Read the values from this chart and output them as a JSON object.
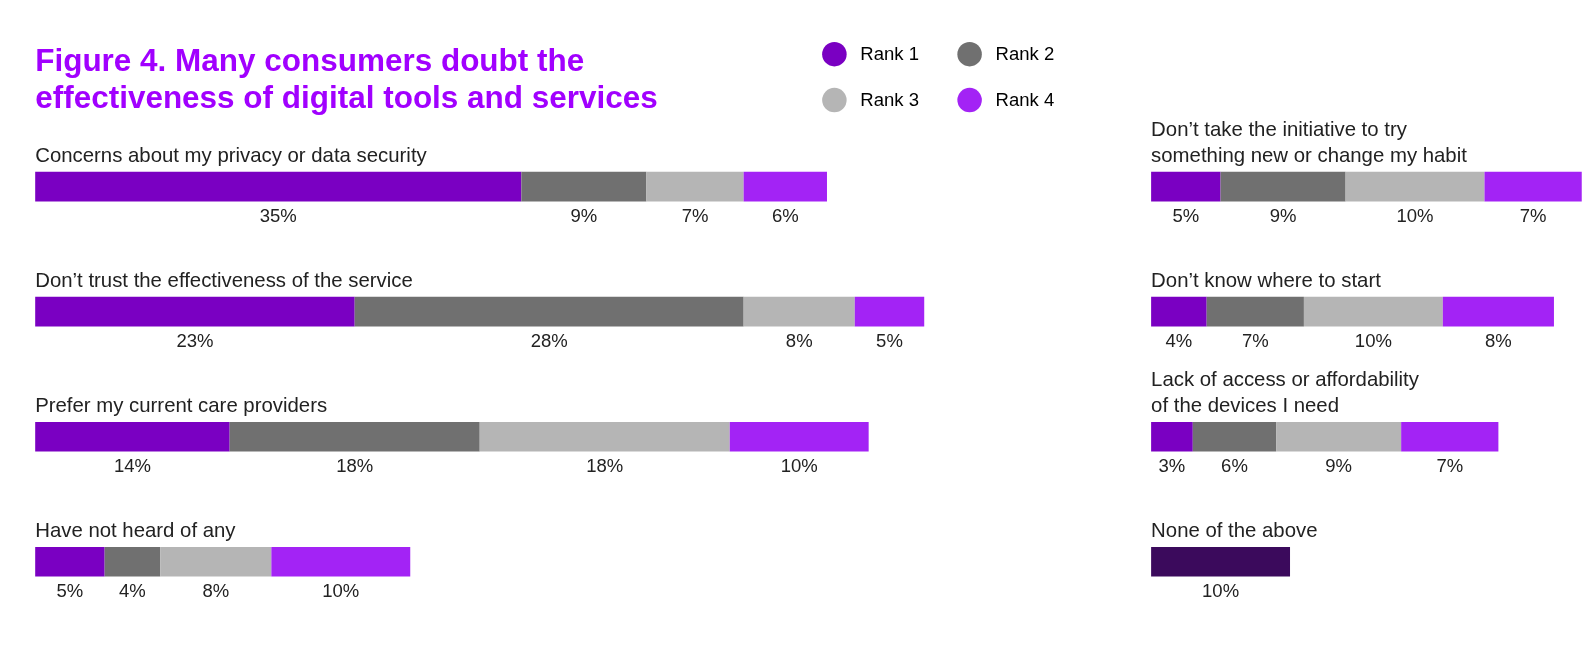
{
  "chart_data": [
    {
      "type": "bar",
      "orientation": "horizontal",
      "stacked": true,
      "title": "Figure 4. Many consumers doubt the\neffectiveness of digital tools and services",
      "tick_labels": false,
      "grid": false,
      "legend": "top right",
      "categories": [
        "Concerns about my privacy or data security",
        "Don’t trust the effectiveness of the service",
        "Prefer my current care providers",
        "Have not heard of any"
      ],
      "series": [
        {
          "name": "Rank 1",
          "color": "#7a00c2",
          "values": [
            35,
            23,
            14,
            5
          ],
          "value_labels": [
            "35%",
            "23%",
            "14%",
            "5%"
          ]
        },
        {
          "name": "Rank 2",
          "color": "#707070",
          "values": [
            9,
            28,
            18,
            4
          ],
          "value_labels": [
            "9%",
            "28%",
            "18%",
            "4%"
          ]
        },
        {
          "name": "Rank 3",
          "color": "#b5b5b5",
          "values": [
            7,
            8,
            18,
            8
          ],
          "value_labels": [
            "7%",
            "8%",
            "18%",
            "8%"
          ]
        },
        {
          "name": "Rank 4",
          "color": "#a323f5",
          "values": [
            6,
            5,
            10,
            10
          ],
          "value_labels": [
            "6%",
            "5%",
            "10%",
            "10%"
          ]
        }
      ]
    },
    {
      "type": "bar",
      "orientation": "horizontal",
      "stacked": true,
      "tick_labels": false,
      "grid": false,
      "categories": [
        "Don’t take the initiative to try\nsomething new or change my habit",
        "Don’t know where to start",
        "Lack of access or affordability\nof the devices I need",
        "None of the above"
      ],
      "series": [
        {
          "color": "#7a00c2",
          "colors": [
            "#7a00c2",
            "#7a00c2",
            "#7a00c2",
            "#3b0a5c"
          ],
          "values": [
            5,
            4,
            3,
            10
          ],
          "value_labels": [
            "5%",
            "4%",
            "3%",
            "10%"
          ]
        },
        {
          "color": "#707070",
          "values": [
            9,
            7,
            6,
            null
          ],
          "value_labels": [
            "9%",
            "7%",
            "6%",
            null
          ]
        },
        {
          "color": "#b5b5b5",
          "values": [
            10,
            10,
            9,
            null
          ],
          "value_labels": [
            "10%",
            "10%",
            "9%",
            null
          ]
        },
        {
          "color": "#a323f5",
          "values": [
            7,
            8,
            7,
            null
          ],
          "value_labels": [
            "7%",
            "8%",
            "7%",
            null
          ]
        }
      ]
    }
  ]
}
